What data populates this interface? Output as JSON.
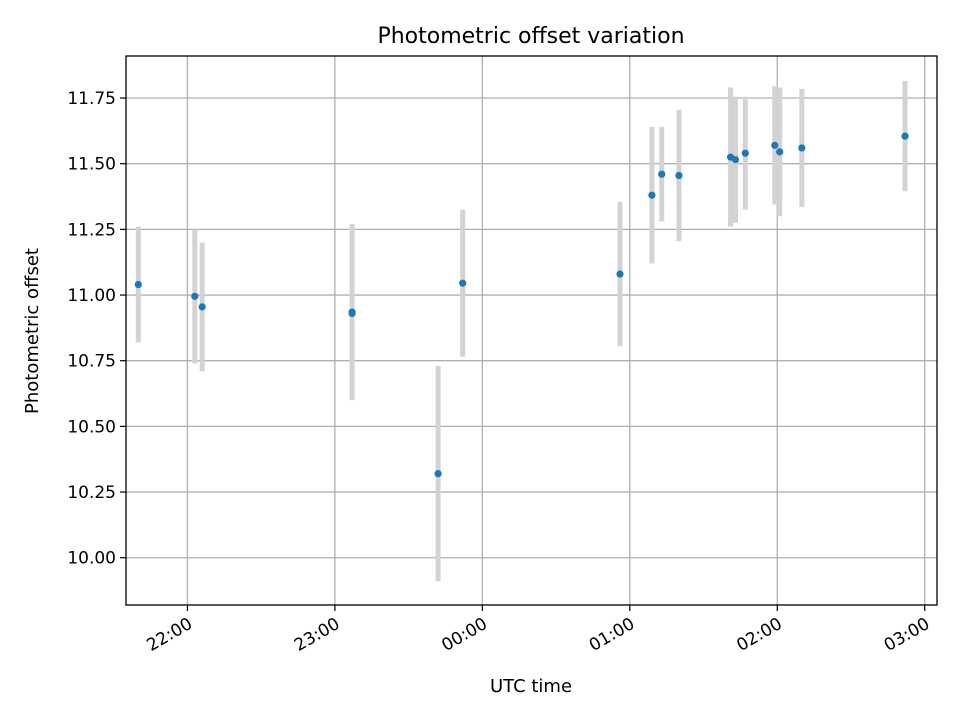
{
  "chart_data": {
    "type": "scatter",
    "title": "Photometric offset variation",
    "xlabel": "UTC time",
    "ylabel": "Photometric offset",
    "x_ticks": [
      "22:00",
      "23:00",
      "00:00",
      "01:00",
      "02:00",
      "03:00"
    ],
    "y_ticks": [
      "10.00",
      "10.25",
      "10.50",
      "10.75",
      "11.00",
      "11.25",
      "11.50",
      "11.75"
    ],
    "xlim": [
      "21:35",
      "03:05"
    ],
    "ylim": [
      9.82,
      11.91
    ],
    "grid": true,
    "colors": {
      "point": "#1f77b4",
      "errorbar": "#d3d3d3",
      "grid": "#b0b0b0"
    },
    "points": [
      {
        "x": "21:40",
        "y": 11.04,
        "err": 0.22
      },
      {
        "x": "22:03",
        "y": 10.995,
        "err": 0.255
      },
      {
        "x": "22:06",
        "y": 10.955,
        "err": 0.245
      },
      {
        "x": "23:07",
        "y": 10.935,
        "err": 0.335
      },
      {
        "x": "23:07",
        "y": 10.93,
        "err": 0.0
      },
      {
        "x": "23:42",
        "y": 10.32,
        "err": 0.41
      },
      {
        "x": "23:52",
        "y": 11.045,
        "err": 0.28
      },
      {
        "x": "00:56",
        "y": 11.08,
        "err": 0.275
      },
      {
        "x": "01:09",
        "y": 11.38,
        "err": 0.26
      },
      {
        "x": "01:13",
        "y": 11.46,
        "err": 0.18
      },
      {
        "x": "01:20",
        "y": 11.455,
        "err": 0.25
      },
      {
        "x": "01:41",
        "y": 11.525,
        "err": 0.265
      },
      {
        "x": "01:43",
        "y": 11.515,
        "err": 0.24
      },
      {
        "x": "01:47",
        "y": 11.54,
        "err": 0.215
      },
      {
        "x": "01:59",
        "y": 11.57,
        "err": 0.225
      },
      {
        "x": "02:01",
        "y": 11.545,
        "err": 0.245
      },
      {
        "x": "02:10",
        "y": 11.56,
        "err": 0.225
      },
      {
        "x": "02:52",
        "y": 11.605,
        "err": 0.21
      }
    ]
  }
}
